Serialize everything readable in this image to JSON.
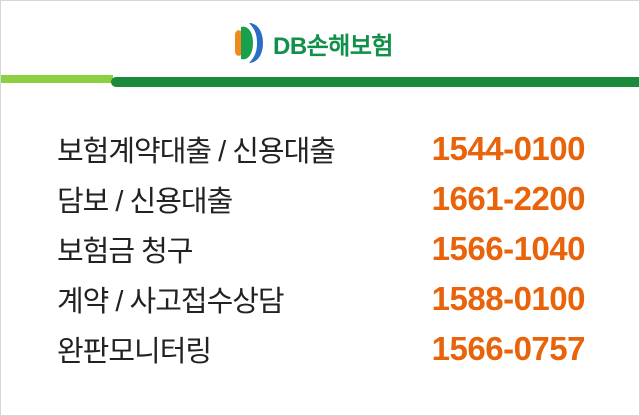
{
  "header": {
    "brand_prefix": "DB",
    "brand_name": "손해보험"
  },
  "colors": {
    "brand_green": "#109048",
    "accent_light_green": "#8ccf3f",
    "phone_orange": "#e8630a"
  },
  "contacts": [
    {
      "label": "보험계약대출 / 신용대출",
      "phone": "1544-0100"
    },
    {
      "label": "담보 / 신용대출",
      "phone": "1661-2200"
    },
    {
      "label": "보험금 청구",
      "phone": "1566-1040"
    },
    {
      "label": "계약 / 사고접수상담",
      "phone": "1588-0100"
    },
    {
      "label": "완판모니터링",
      "phone": "1566-0757"
    }
  ]
}
